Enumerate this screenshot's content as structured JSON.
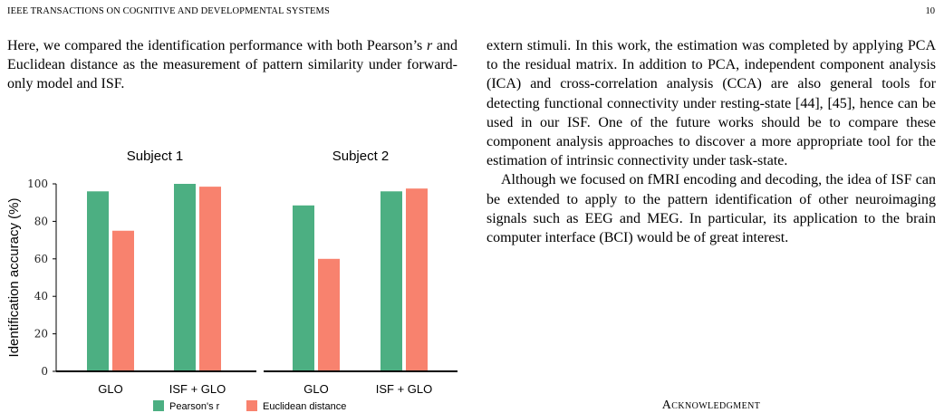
{
  "header": {
    "journal": "IEEE TRANSACTIONS ON COGNITIVE AND DEVELOPMENTAL SYSTEMS",
    "page_number": "10"
  },
  "left_column": {
    "paragraph_before": "Here, we compared the identification performance with both Pearson’s ",
    "math_symbol": "r",
    "paragraph_after": " and Euclidean distance as the measurement of pattern similarity under forward-only model and ISF."
  },
  "right_column": {
    "paragraphs": [
      "extern stimuli. In this work, the estimation was completed by applying PCA to the residual matrix. In addition to PCA, independent component analysis (ICA) and cross-correlation analysis (CCA) are also general tools for detecting functional connectivity under resting-state [44], [45], hence can be used in our ISF. One of the future works should be to compare these component analysis approaches to discover a more appropriate tool for the estimation of intrinsic connectivity under task-state.",
      "Although we focused on fMRI encoding and decoding, the idea of ISF can be extended to apply to the pattern identification of other neuroimaging signals such as EEG and MEG. In particular, its application to the brain computer interface (BCI) would be of great interest."
    ],
    "section_heading": "Acknowledgment"
  },
  "chart_data": {
    "type": "bar",
    "ylabel": "Identification accuracy (%)",
    "ylim": [
      0,
      100
    ],
    "yticks": [
      0,
      20,
      40,
      60,
      80,
      100
    ],
    "legend": {
      "placement": "bottom",
      "entries": [
        "Pearson's r",
        "Euclidean distance"
      ]
    },
    "colors": {
      "pearson": "#4caf82",
      "euclidean": "#f8826e"
    },
    "panels": [
      {
        "title": "Subject 1",
        "categories": [
          "GLO",
          "ISF + GLO"
        ],
        "series": [
          {
            "name": "Pearson's r",
            "values": [
              96,
              100
            ]
          },
          {
            "name": "Euclidean distance",
            "values": [
              75,
              98.5
            ]
          }
        ]
      },
      {
        "title": "Subject 2",
        "categories": [
          "GLO",
          "ISF + GLO"
        ],
        "series": [
          {
            "name": "Pearson's r",
            "values": [
              88.5,
              96
            ]
          },
          {
            "name": "Euclidean distance",
            "values": [
              60,
              97.5
            ]
          }
        ]
      }
    ]
  }
}
